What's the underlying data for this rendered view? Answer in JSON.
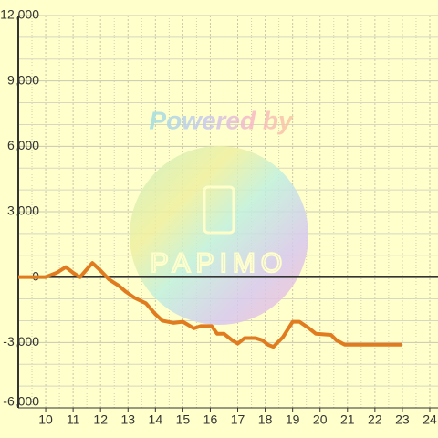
{
  "chart_data": {
    "type": "line",
    "watermark": "Powered by",
    "logo_text": "PAPIMO",
    "x": [
      9,
      10,
      10.4,
      10.73,
      11,
      11.25,
      11.7,
      12,
      12.3,
      12.67,
      12.92,
      13.25,
      13.65,
      14,
      14.25,
      14.65,
      15,
      15.4,
      15.65,
      16.05,
      16.25,
      16.5,
      16.8,
      17,
      17.25,
      17.65,
      17.9,
      18.1,
      18.3,
      18.65,
      19,
      19.25,
      19.6,
      19.85,
      20.4,
      20.6,
      20.9,
      23
    ],
    "series": [
      {
        "color": "#e07b20",
        "values": [
          0,
          0,
          200,
          460,
          200,
          0,
          650,
          300,
          -100,
          -400,
          -670,
          -960,
          -1200,
          -1700,
          -2000,
          -2100,
          -2050,
          -2350,
          -2250,
          -2250,
          -2600,
          -2600,
          -2900,
          -3050,
          -2800,
          -2800,
          -2900,
          -3100,
          -3200,
          -2750,
          -2050,
          -2050,
          -2350,
          -2600,
          -2650,
          -2900,
          -3100,
          -3100
        ]
      }
    ],
    "xlim": [
      9,
      24.3
    ],
    "xticks": [
      10,
      11,
      12,
      13,
      14,
      15,
      16,
      17,
      18,
      19,
      20,
      21,
      22,
      23,
      24
    ],
    "xminor": [
      9.5,
      10.5,
      11.5,
      12.5,
      13.5,
      14.5,
      15.5,
      16.5,
      17.5,
      18.5,
      19.5,
      20.5,
      21.5,
      22.5,
      23.5
    ],
    "ylim": [
      -6000,
      12000
    ],
    "yticks": [
      {
        "value": -6000,
        "label": "-6,000"
      },
      {
        "value": -3000,
        "label": "-3,000"
      },
      0,
      {
        "value": 3000,
        "label": "3,000"
      },
      {
        "value": 6000,
        "label": "6,000"
      },
      {
        "value": 9000,
        "label": "9,000"
      },
      {
        "value": 12000,
        "label": "12,000"
      }
    ],
    "yminor": [
      -5000,
      -4000,
      -2000,
      -1000,
      1000,
      2000,
      4000,
      5000,
      7000,
      8000,
      10000,
      11000
    ],
    "grid": true
  }
}
